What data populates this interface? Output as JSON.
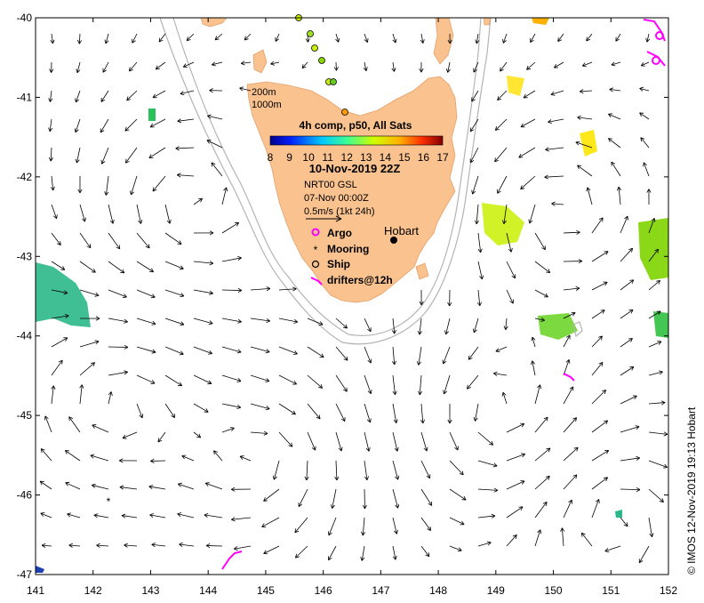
{
  "map": {
    "lon_labels": [
      "141",
      "142",
      "143",
      "144",
      "145",
      "146",
      "147",
      "148",
      "149",
      "150",
      "151",
      "152"
    ],
    "lat_labels": [
      "-40",
      "-41",
      "-42",
      "-43",
      "-44",
      "-45",
      "-46",
      "-47"
    ],
    "lon_range": [
      141,
      152
    ],
    "lat_range": [
      -47,
      -40
    ],
    "land_color": "#f9c28f",
    "arrow_color": "#000000"
  },
  "depth_legend": {
    "contour_1": "200m",
    "contour_2": "1000m"
  },
  "colorbar": {
    "title": "4h comp, p50, All Sats",
    "tick_labels": [
      "8",
      "9",
      "10",
      "11",
      "12",
      "13",
      "14",
      "15",
      "16",
      "17"
    ],
    "range": [
      8,
      17
    ]
  },
  "product": {
    "date_label": "10-Nov-2019 22Z",
    "model_label": "NRT00 GSL",
    "ref_time": "07-Nov 00:00Z",
    "scale_label": "0.5m/s (1kt 24h)"
  },
  "symbols": {
    "argo": "Argo",
    "mooring": "Mooring",
    "ship": "Ship",
    "drifters": "drifters@12h",
    "argo_color": "#ff00ff",
    "drifter_color": "#ff00ff"
  },
  "place": {
    "city": "Hobart"
  },
  "credit": "© IMOS 12-Nov-2019 19:13 Hobart"
}
